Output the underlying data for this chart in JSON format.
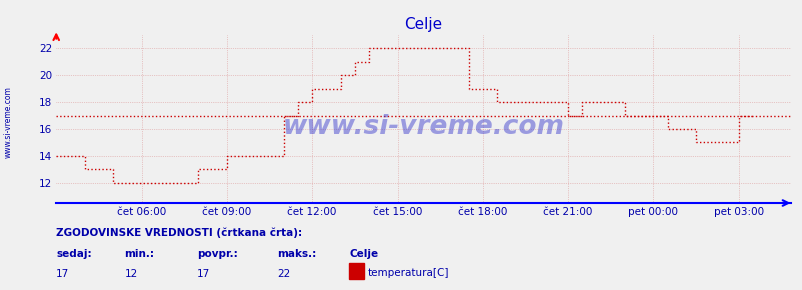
{
  "title": "Celje",
  "title_color": "#0000cc",
  "background_color": "#f0f0f0",
  "plot_bg_color": "#f0f0f0",
  "line_color": "#cc0000",
  "avg_value": 17,
  "xlabel_ticks": [
    "čet 06:00",
    "čet 09:00",
    "čet 12:00",
    "čet 15:00",
    "čet 18:00",
    "čet 21:00",
    "pet 00:00",
    "pet 03:00"
  ],
  "x_tick_positions": [
    36,
    72,
    108,
    144,
    180,
    216,
    252,
    288
  ],
  "xlim": [
    0,
    310
  ],
  "ylim": [
    10.5,
    23
  ],
  "yticks": [
    12,
    14,
    16,
    18,
    20,
    22
  ],
  "ytick_labels": [
    "12",
    "14",
    "16",
    "18",
    "20",
    "22"
  ],
  "grid_color": "#dd9999",
  "footer_text1": "ZGODOVINSKE VREDNOSTI (črtkana črta):",
  "footer_labels": [
    "sedaj:",
    "min.:",
    "povpr.:",
    "maks.:",
    "Celje"
  ],
  "footer_values": [
    "17",
    "12",
    "17",
    "22"
  ],
  "legend_label": "temperatura[C]",
  "legend_color": "#cc0000",
  "watermark": "www.si-vreme.com",
  "side_label": "www.si-vreme.com",
  "time_points": [
    0,
    6,
    12,
    18,
    24,
    30,
    36,
    42,
    48,
    54,
    60,
    66,
    72,
    78,
    84,
    90,
    96,
    102,
    108,
    114,
    120,
    126,
    132,
    138,
    144,
    150,
    156,
    162,
    168,
    174,
    180,
    186,
    192,
    198,
    204,
    210,
    216,
    222,
    228,
    234,
    240,
    246,
    252,
    258,
    264,
    270,
    276,
    282,
    288,
    294
  ],
  "temp_values": [
    14,
    14,
    13,
    13,
    12,
    12,
    12,
    12,
    12,
    12,
    13,
    13,
    14,
    14,
    14,
    14,
    17,
    18,
    19,
    19,
    20,
    21,
    22,
    22,
    22,
    22,
    22,
    22,
    22,
    19,
    19,
    18,
    18,
    18,
    18,
    18,
    17,
    18,
    18,
    18,
    17,
    17,
    17,
    16,
    16,
    15,
    15,
    15,
    17,
    17
  ]
}
